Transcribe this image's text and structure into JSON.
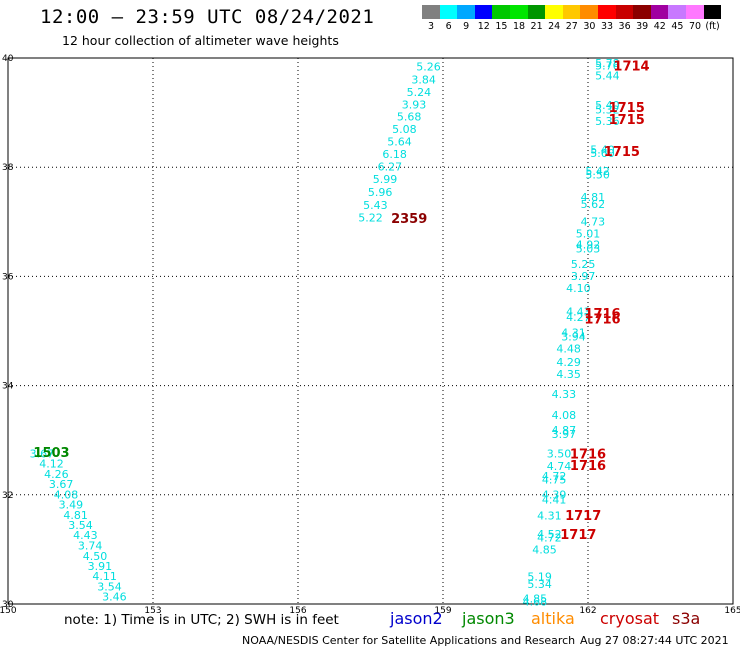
{
  "title": "12:00 – 23:59 UTC 08/24/2021",
  "subtitle": "12 hour collection of altimeter wave heights",
  "note": "note: 1) Time is in UTC; 2) SWH is in feet",
  "footer_org": "NOAA/NESDIS Center for Satellite Applications and Research",
  "footer_time": "Aug 27 08:27:44 UTC 2021",
  "colorbar": {
    "colors": [
      "#808080",
      "#00ffff",
      "#00a8ff",
      "#0000ff",
      "#00c800",
      "#00e600",
      "#009600",
      "#ffff00",
      "#ffc800",
      "#ff8c00",
      "#ff0000",
      "#c80000",
      "#8b0000",
      "#a000a0",
      "#c878ff",
      "#ff78ff",
      "#000000"
    ],
    "labels": [
      "3",
      "6",
      "9",
      "12",
      "15",
      "18",
      "21",
      "24",
      "27",
      "30",
      "33",
      "36",
      "39",
      "42",
      "45",
      "70",
      "(ft)"
    ]
  },
  "satellites": [
    {
      "name": "jason2",
      "color": "#0000cc"
    },
    {
      "name": "jason3",
      "color": "#008800"
    },
    {
      "name": "altika",
      "color": "#ff8c00"
    },
    {
      "name": "cryosat",
      "color": "#cc0000"
    },
    {
      "name": "s3a",
      "color": "#8b0000"
    }
  ],
  "chart_data": {
    "type": "scatter",
    "xlim": [
      150,
      165
    ],
    "ylim": [
      30,
      40
    ],
    "xticks": [
      150,
      153,
      156,
      159,
      162,
      165
    ],
    "yticks": [
      30,
      32,
      34,
      36,
      38,
      40
    ],
    "grid": true,
    "wave_color": "#00dede",
    "wave_heights": [
      {
        "lon": 158.7,
        "lat": 39.84,
        "v": "5.26"
      },
      {
        "lon": 158.6,
        "lat": 39.61,
        "v": "3.84"
      },
      {
        "lon": 158.5,
        "lat": 39.38,
        "v": "5.24"
      },
      {
        "lon": 158.4,
        "lat": 39.15,
        "v": "3.93"
      },
      {
        "lon": 158.3,
        "lat": 38.93,
        "v": "5.68"
      },
      {
        "lon": 158.2,
        "lat": 38.7,
        "v": "5.08"
      },
      {
        "lon": 158.1,
        "lat": 38.47,
        "v": "5.64"
      },
      {
        "lon": 158.0,
        "lat": 38.24,
        "v": "6.18"
      },
      {
        "lon": 157.9,
        "lat": 38.01,
        "v": "6.27"
      },
      {
        "lon": 157.8,
        "lat": 37.78,
        "v": "5.99"
      },
      {
        "lon": 157.7,
        "lat": 37.55,
        "v": "5.96"
      },
      {
        "lon": 157.6,
        "lat": 37.31,
        "v": "5.43"
      },
      {
        "lon": 157.5,
        "lat": 37.08,
        "v": "5.22"
      },
      {
        "lon": 162.4,
        "lat": 39.91,
        "v": "5.78"
      },
      {
        "lon": 162.4,
        "lat": 39.86,
        "v": "5.76"
      },
      {
        "lon": 162.4,
        "lat": 39.68,
        "v": "5.44"
      },
      {
        "lon": 162.4,
        "lat": 39.14,
        "v": "5.40"
      },
      {
        "lon": 162.4,
        "lat": 39.06,
        "v": "5.32"
      },
      {
        "lon": 162.4,
        "lat": 38.85,
        "v": "5.36"
      },
      {
        "lon": 162.3,
        "lat": 38.32,
        "v": "5.40"
      },
      {
        "lon": 162.3,
        "lat": 38.26,
        "v": "5.60"
      },
      {
        "lon": 162.2,
        "lat": 37.93,
        "v": "5.42"
      },
      {
        "lon": 162.2,
        "lat": 37.87,
        "v": "5.50"
      },
      {
        "lon": 162.1,
        "lat": 37.45,
        "v": "4.81"
      },
      {
        "lon": 162.1,
        "lat": 37.33,
        "v": "5.62"
      },
      {
        "lon": 162.1,
        "lat": 37.01,
        "v": "4.73"
      },
      {
        "lon": 162.0,
        "lat": 36.79,
        "v": "5.01"
      },
      {
        "lon": 162.0,
        "lat": 36.58,
        "v": "4.92"
      },
      {
        "lon": 162.0,
        "lat": 36.51,
        "v": "5.03"
      },
      {
        "lon": 161.9,
        "lat": 36.23,
        "v": "5.25"
      },
      {
        "lon": 161.9,
        "lat": 36.01,
        "v": "3.97"
      },
      {
        "lon": 161.8,
        "lat": 35.79,
        "v": "4.10"
      },
      {
        "lon": 161.8,
        "lat": 35.36,
        "v": "4.43"
      },
      {
        "lon": 161.8,
        "lat": 35.26,
        "v": "4.27"
      },
      {
        "lon": 161.7,
        "lat": 34.97,
        "v": "4.31"
      },
      {
        "lon": 161.7,
        "lat": 34.9,
        "v": "3.94"
      },
      {
        "lon": 161.6,
        "lat": 34.68,
        "v": "4.48"
      },
      {
        "lon": 161.6,
        "lat": 34.43,
        "v": "4.29"
      },
      {
        "lon": 161.6,
        "lat": 34.21,
        "v": "4.35"
      },
      {
        "lon": 161.5,
        "lat": 33.85,
        "v": "4.33"
      },
      {
        "lon": 161.5,
        "lat": 33.46,
        "v": "4.08"
      },
      {
        "lon": 161.5,
        "lat": 33.19,
        "v": "4.87"
      },
      {
        "lon": 161.5,
        "lat": 33.11,
        "v": "3.97"
      },
      {
        "lon": 161.4,
        "lat": 32.76,
        "v": "3.50"
      },
      {
        "lon": 161.4,
        "lat": 32.53,
        "v": "4.74"
      },
      {
        "lon": 161.3,
        "lat": 32.34,
        "v": "4.72"
      },
      {
        "lon": 161.3,
        "lat": 32.28,
        "v": "4.75"
      },
      {
        "lon": 161.3,
        "lat": 32.01,
        "v": "4.39"
      },
      {
        "lon": 161.3,
        "lat": 31.91,
        "v": "4.41"
      },
      {
        "lon": 161.2,
        "lat": 31.62,
        "v": "4.31"
      },
      {
        "lon": 161.2,
        "lat": 31.28,
        "v": "4.52"
      },
      {
        "lon": 161.2,
        "lat": 31.22,
        "v": "4.72"
      },
      {
        "lon": 161.1,
        "lat": 31.0,
        "v": "4.85"
      },
      {
        "lon": 161.0,
        "lat": 30.5,
        "v": "5.19"
      },
      {
        "lon": 161.0,
        "lat": 30.37,
        "v": "5.34"
      },
      {
        "lon": 160.9,
        "lat": 30.1,
        "v": "4.85"
      },
      {
        "lon": 160.9,
        "lat": 30.05,
        "v": "4.68"
      },
      {
        "lon": 150.7,
        "lat": 32.76,
        "v": "3.67"
      },
      {
        "lon": 150.9,
        "lat": 32.57,
        "v": "4.12"
      },
      {
        "lon": 151.0,
        "lat": 32.38,
        "v": "4.26"
      },
      {
        "lon": 151.1,
        "lat": 32.2,
        "v": "3.67"
      },
      {
        "lon": 151.2,
        "lat": 32.01,
        "v": "4.08"
      },
      {
        "lon": 151.3,
        "lat": 31.82,
        "v": "3.49"
      },
      {
        "lon": 151.4,
        "lat": 31.63,
        "v": "4.81"
      },
      {
        "lon": 151.5,
        "lat": 31.45,
        "v": "3.54"
      },
      {
        "lon": 151.6,
        "lat": 31.26,
        "v": "4.43"
      },
      {
        "lon": 151.7,
        "lat": 31.07,
        "v": "3.74"
      },
      {
        "lon": 151.8,
        "lat": 30.88,
        "v": "4.50"
      },
      {
        "lon": 151.9,
        "lat": 30.7,
        "v": "3.91"
      },
      {
        "lon": 152.0,
        "lat": 30.51,
        "v": "4.11"
      },
      {
        "lon": 152.1,
        "lat": 30.32,
        "v": "3.54"
      },
      {
        "lon": 152.2,
        "lat": 30.14,
        "v": "3.46"
      }
    ],
    "time_labels": [
      {
        "lon": 162.9,
        "lat": 39.86,
        "v": "1714",
        "sat": "cryosat"
      },
      {
        "lon": 162.8,
        "lat": 39.1,
        "v": "1715",
        "sat": "cryosat"
      },
      {
        "lon": 162.8,
        "lat": 38.88,
        "v": "1715",
        "sat": "cryosat"
      },
      {
        "lon": 162.7,
        "lat": 38.3,
        "v": "1715",
        "sat": "cryosat"
      },
      {
        "lon": 158.3,
        "lat": 37.07,
        "v": "2359",
        "sat": "s3a"
      },
      {
        "lon": 162.3,
        "lat": 35.33,
        "v": "1716",
        "sat": "cryosat"
      },
      {
        "lon": 162.3,
        "lat": 35.23,
        "v": "1716",
        "sat": "cryosat"
      },
      {
        "lon": 162.0,
        "lat": 32.76,
        "v": "1716",
        "sat": "cryosat"
      },
      {
        "lon": 162.0,
        "lat": 32.55,
        "v": "1716",
        "sat": "cryosat"
      },
      {
        "lon": 161.9,
        "lat": 31.63,
        "v": "1717",
        "sat": "cryosat"
      },
      {
        "lon": 161.8,
        "lat": 31.28,
        "v": "1717",
        "sat": "cryosat"
      },
      {
        "lon": 150.9,
        "lat": 32.78,
        "v": "1503",
        "sat": "jason3"
      }
    ]
  }
}
